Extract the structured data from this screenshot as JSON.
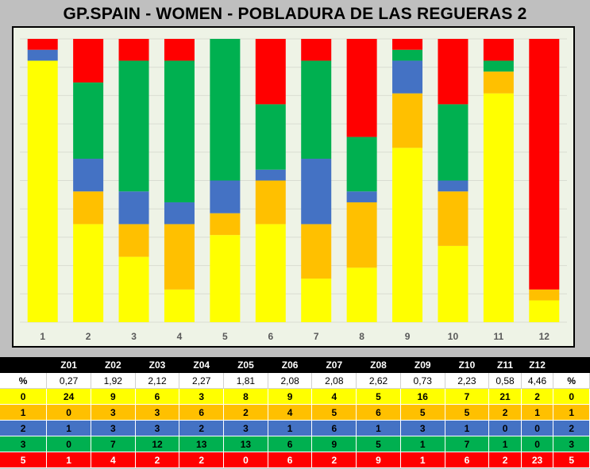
{
  "title": "GP.SPAIN - WOMEN - POBLADURA DE LAS REGUERAS 2",
  "colors": {
    "score_0": "#ffff00",
    "score_1": "#ffc000",
    "score_2": "#4472c4",
    "score_3": "#00b050",
    "score_5": "#ff0000"
  },
  "chart_data": {
    "type": "bar",
    "stacked": true,
    "percent_stacked": true,
    "categories": [
      "1",
      "2",
      "3",
      "4",
      "5",
      "6",
      "7",
      "8",
      "9",
      "10",
      "11",
      "12"
    ],
    "series": [
      {
        "color": "#ffff00",
        "values": [
          24,
          9,
          6,
          3,
          8,
          9,
          4,
          5,
          16,
          7,
          21,
          2
        ]
      },
      {
        "color": "#ffc000",
        "values": [
          0,
          3,
          3,
          6,
          2,
          4,
          5,
          6,
          5,
          5,
          2,
          1
        ]
      },
      {
        "color": "#4472c4",
        "values": [
          1,
          3,
          3,
          2,
          3,
          1,
          6,
          1,
          3,
          1,
          0,
          0
        ]
      },
      {
        "color": "#00b050",
        "values": [
          0,
          7,
          12,
          13,
          13,
          6,
          9,
          5,
          1,
          7,
          1,
          0
        ]
      },
      {
        "color": "#ff0000",
        "values": [
          1,
          4,
          2,
          2,
          0,
          6,
          2,
          9,
          1,
          6,
          2,
          23
        ]
      }
    ],
    "grid": true,
    "legend": "none"
  },
  "table": {
    "header": [
      "",
      "Z01",
      "Z02",
      "Z03",
      "Z04",
      "Z05",
      "Z06",
      "Z07",
      "Z08",
      "Z09",
      "Z10",
      "Z11",
      "Z12",
      ""
    ],
    "rows": [
      {
        "cells": [
          "%",
          "0,27",
          "1,92",
          "2,12",
          "2,27",
          "1,81",
          "2,08",
          "2,08",
          "2,62",
          "0,73",
          "2,23",
          "0,58",
          "4,46",
          "%"
        ]
      },
      {
        "cells": [
          "0",
          "24",
          "9",
          "6",
          "3",
          "8",
          "9",
          "4",
          "5",
          "16",
          "7",
          "21",
          "2",
          "0"
        ]
      },
      {
        "cells": [
          "1",
          "0",
          "3",
          "3",
          "6",
          "2",
          "4",
          "5",
          "6",
          "5",
          "5",
          "2",
          "1",
          "1"
        ]
      },
      {
        "cells": [
          "2",
          "1",
          "3",
          "3",
          "2",
          "3",
          "1",
          "6",
          "1",
          "3",
          "1",
          "0",
          "0",
          "2"
        ]
      },
      {
        "cells": [
          "3",
          "0",
          "7",
          "12",
          "13",
          "13",
          "6",
          "9",
          "5",
          "1",
          "7",
          "1",
          "0",
          "3"
        ]
      },
      {
        "cells": [
          "5",
          "1",
          "4",
          "2",
          "2",
          "0",
          "6",
          "2",
          "9",
          "1",
          "6",
          "2",
          "23",
          "5"
        ]
      }
    ]
  }
}
